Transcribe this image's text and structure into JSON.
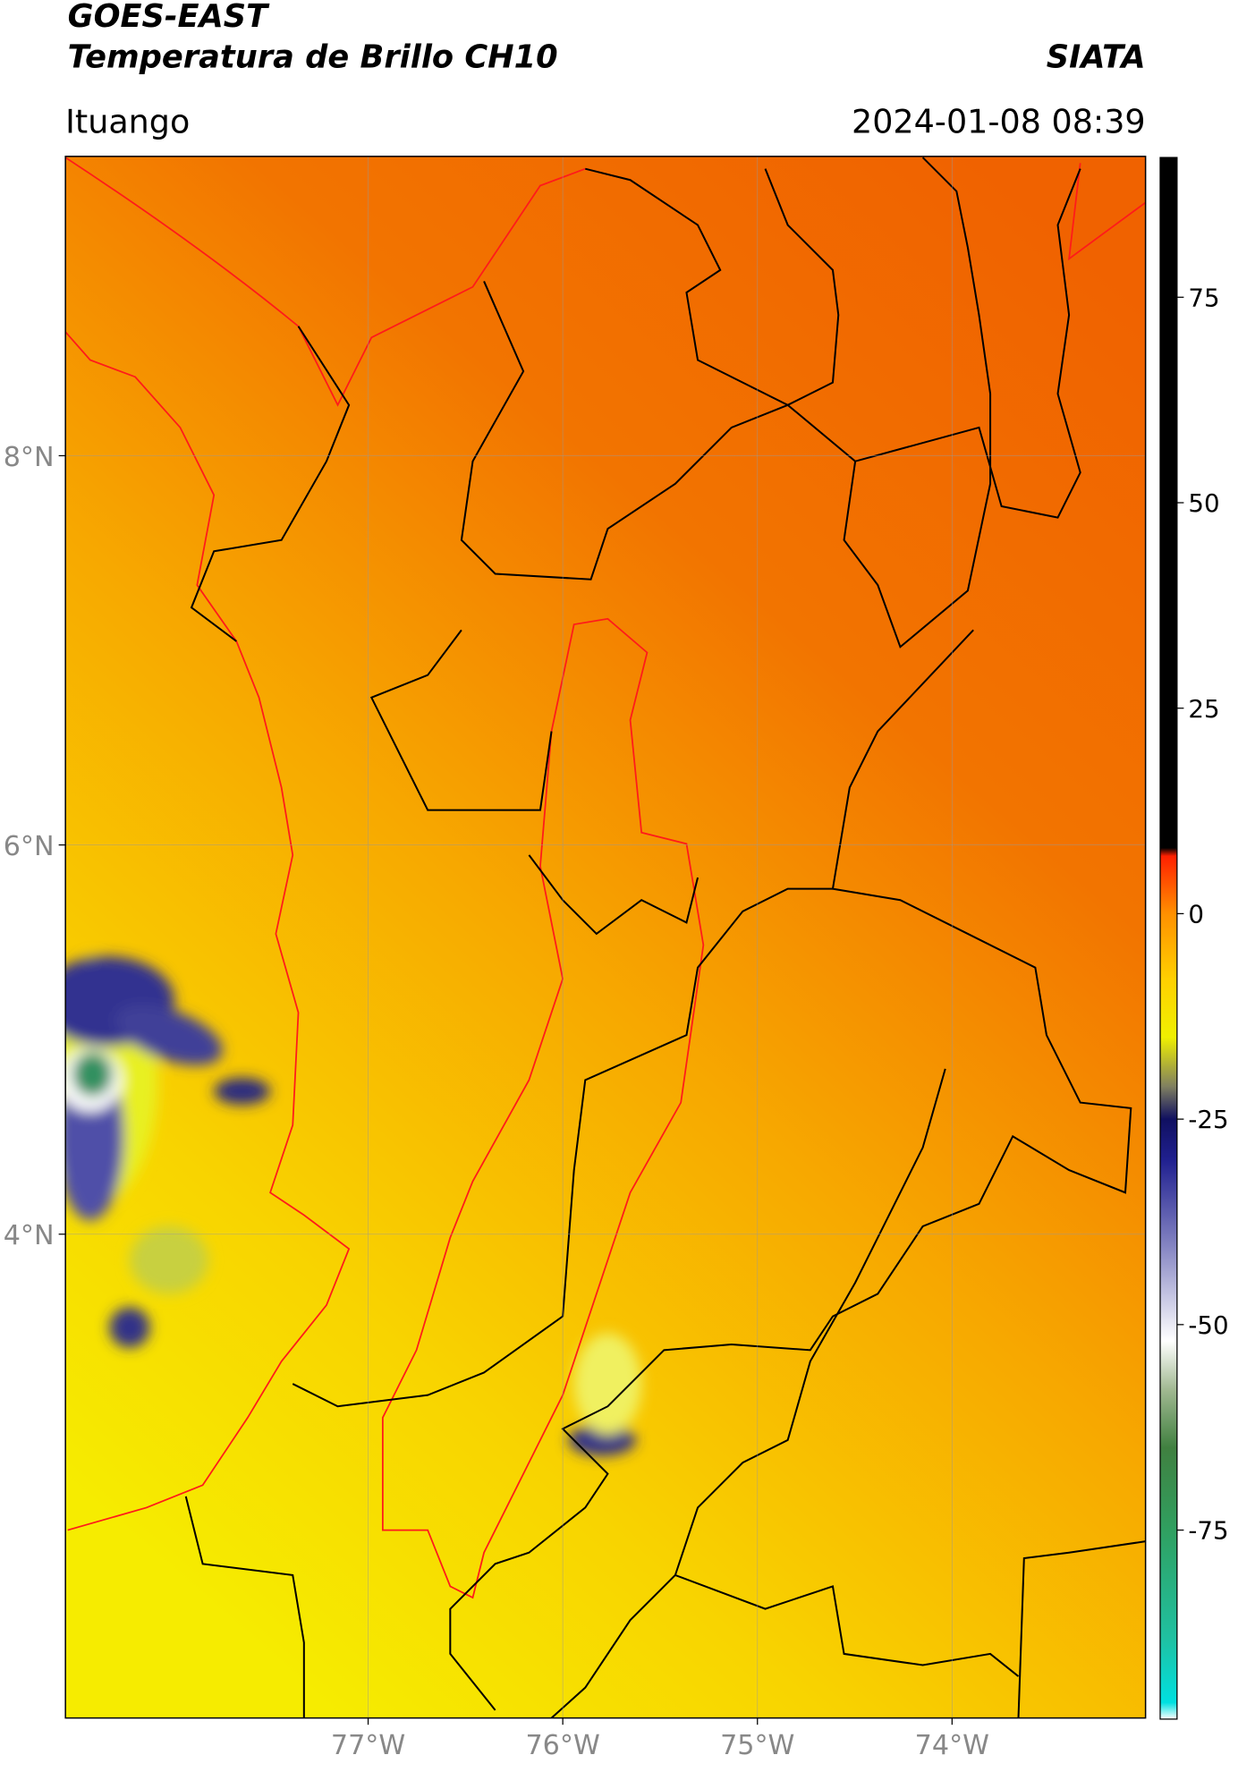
{
  "chart_data": {
    "type": "map",
    "title": "GOES-EAST",
    "subtitle": "Temperatura de Brillo CH10",
    "source": "SIATA",
    "location": "Ituango",
    "datetime": "2024-01-08 08:39",
    "xlim": [
      -78.555,
      -73.006
    ],
    "ylim": [
      1.514,
      9.538
    ],
    "xticks": [
      {
        "value": -77,
        "label": "77°W"
      },
      {
        "value": -76,
        "label": "76°W"
      },
      {
        "value": -75,
        "label": "75°W"
      },
      {
        "value": -74,
        "label": "74°W"
      }
    ],
    "yticks": [
      {
        "value": 8,
        "label": "8°N"
      },
      {
        "value": 6,
        "label": "6°N"
      },
      {
        "value": 4,
        "label": "4°N"
      }
    ],
    "grid": true,
    "colorbar": {
      "lim": [
        -98,
        92
      ],
      "ticks": [
        75,
        50,
        25,
        0,
        -25,
        -50,
        -75
      ],
      "colorscale": [
        {
          "value": -98,
          "color": "#ffffff"
        },
        {
          "value": -96,
          "color": "#00e0e0"
        },
        {
          "value": -88,
          "color": "#20c0a0"
        },
        {
          "value": -75,
          "color": "#30a060"
        },
        {
          "value": -65,
          "color": "#408040"
        },
        {
          "value": -58,
          "color": "#a0b890"
        },
        {
          "value": -52,
          "color": "#ffffff"
        },
        {
          "value": -40,
          "color": "#8080c0"
        },
        {
          "value": -30,
          "color": "#202090"
        },
        {
          "value": -25,
          "color": "#101060"
        },
        {
          "value": -21,
          "color": "#808060"
        },
        {
          "value": -15,
          "color": "#f0f000"
        },
        {
          "value": -8,
          "color": "#ffd000"
        },
        {
          "value": 0,
          "color": "#ff9000"
        },
        {
          "value": 7,
          "color": "#ff2000"
        },
        {
          "value": 8,
          "color": "#000000"
        },
        {
          "value": 92,
          "color": "#000000"
        }
      ]
    }
  }
}
